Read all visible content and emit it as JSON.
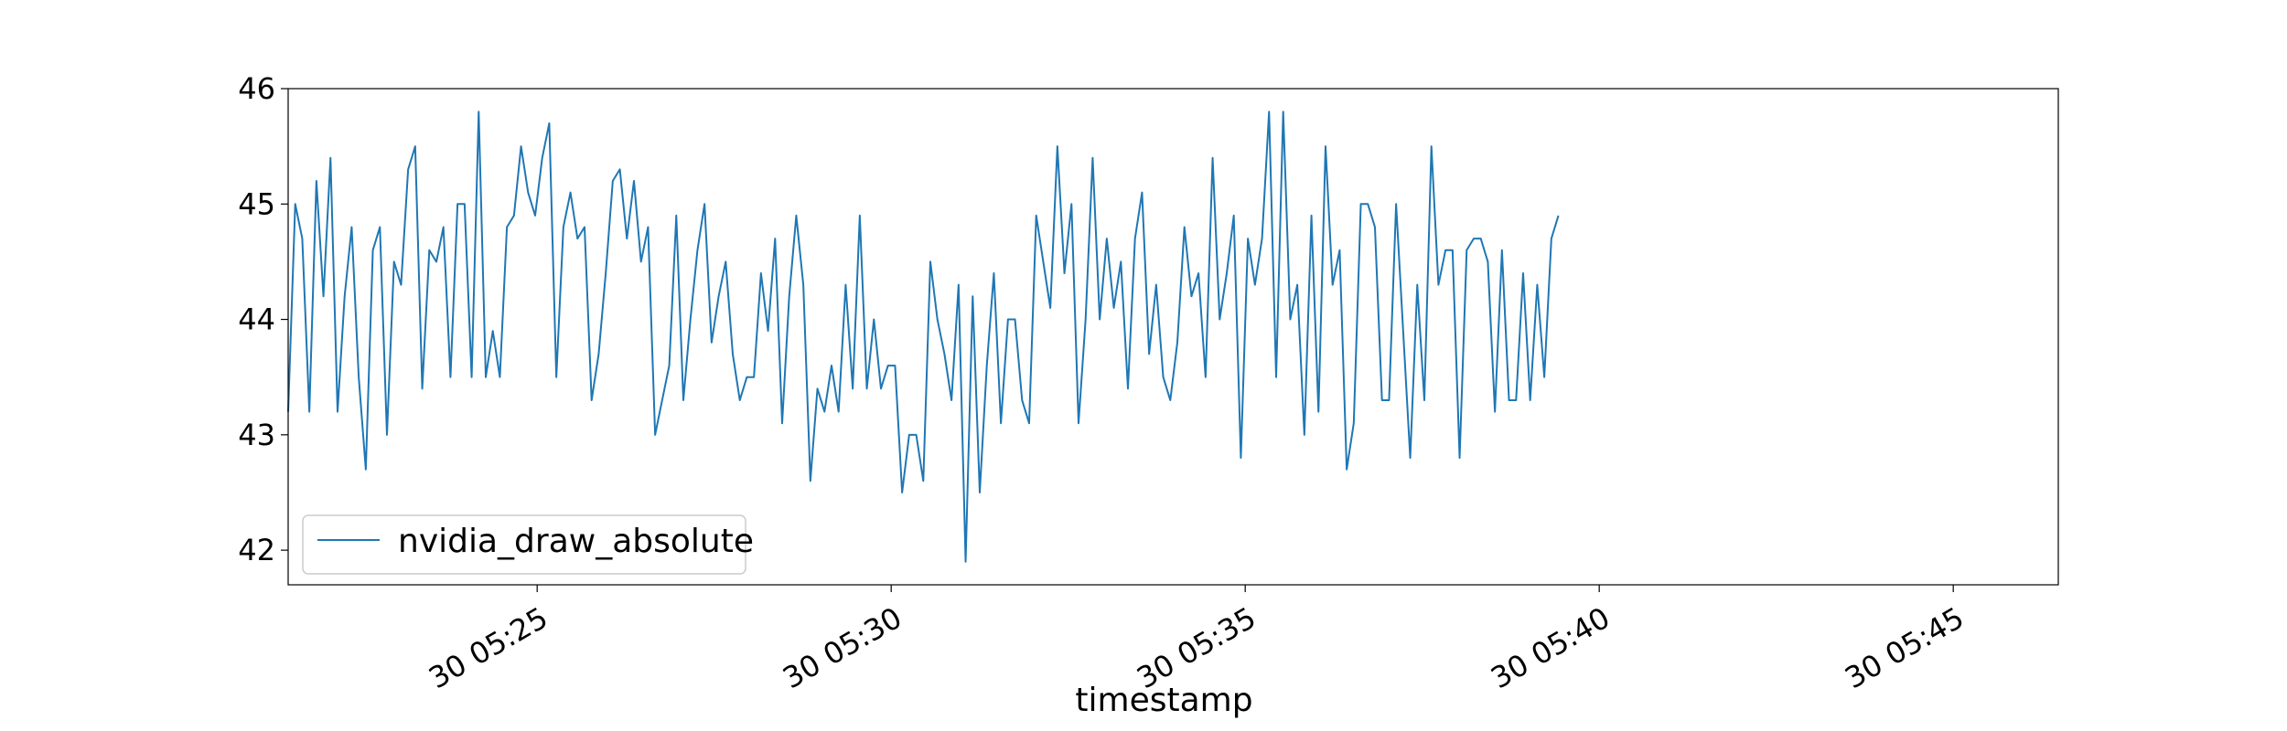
{
  "chart_data": {
    "type": "line",
    "title": "",
    "xlabel": "timestamp",
    "ylabel": "",
    "x_start": "05:21:29",
    "x_interval_seconds": 5.98,
    "xlim": [
      "05:21:29",
      "05:46:29"
    ],
    "ylim": [
      41.7,
      46.0
    ],
    "x_ticks": [
      "30 05:25",
      "30 05:30",
      "30 05:35",
      "30 05:40",
      "30 05:45"
    ],
    "y_ticks": [
      "42",
      "43",
      "44",
      "45",
      "46"
    ],
    "legend": {
      "location": "lower-left",
      "entries": [
        "nvidia_draw_absolute"
      ]
    },
    "grid": false,
    "color": "#1f77b4",
    "series": [
      {
        "name": "nvidia_draw_absolute",
        "values": [
          43.2,
          45.0,
          44.7,
          43.2,
          45.2,
          44.2,
          45.4,
          43.2,
          44.2,
          44.8,
          43.5,
          42.7,
          44.6,
          44.8,
          43.0,
          44.5,
          44.3,
          45.3,
          45.5,
          43.4,
          44.6,
          44.5,
          44.8,
          43.5,
          45.0,
          45.0,
          43.5,
          45.8,
          43.5,
          43.9,
          43.5,
          44.8,
          44.9,
          45.5,
          45.1,
          44.9,
          45.4,
          45.7,
          43.5,
          44.8,
          45.1,
          44.7,
          44.8,
          43.3,
          43.7,
          44.4,
          45.2,
          45.3,
          44.7,
          45.2,
          44.5,
          44.8,
          43.0,
          43.3,
          43.6,
          44.9,
          43.3,
          44.0,
          44.6,
          45.0,
          43.8,
          44.2,
          44.5,
          43.7,
          43.3,
          43.5,
          43.5,
          44.4,
          43.9,
          44.7,
          43.1,
          44.2,
          44.9,
          44.3,
          42.6,
          43.4,
          43.2,
          43.6,
          43.2,
          44.3,
          43.4,
          44.9,
          43.4,
          44.0,
          43.4,
          43.6,
          43.6,
          42.5,
          43.0,
          43.0,
          42.6,
          44.5,
          44.0,
          43.7,
          43.3,
          44.3,
          41.9,
          44.2,
          42.5,
          43.6,
          44.4,
          43.1,
          44.0,
          44.0,
          43.3,
          43.1,
          44.9,
          44.5,
          44.1,
          45.5,
          44.4,
          45.0,
          43.1,
          44.0,
          45.4,
          44.0,
          44.7,
          44.1,
          44.5,
          43.4,
          44.7,
          45.1,
          43.7,
          44.3,
          43.5,
          43.3,
          43.8,
          44.8,
          44.2,
          44.4,
          43.5,
          45.4,
          44.0,
          44.4,
          44.9,
          42.8,
          44.7,
          44.3,
          44.7,
          45.8,
          43.5,
          45.8,
          44.0,
          44.3,
          43.0,
          44.9,
          43.2,
          45.5,
          44.3,
          44.6,
          42.7,
          43.1,
          45.0,
          45.0,
          44.8,
          43.3,
          43.3,
          45.0,
          43.9,
          42.8,
          44.3,
          43.3,
          45.5,
          44.3,
          44.6,
          44.6,
          42.8,
          44.6,
          44.7,
          44.7,
          44.5,
          43.2,
          44.6,
          43.3,
          43.3,
          44.4,
          43.3,
          44.3,
          43.5,
          44.7,
          44.9
        ]
      }
    ]
  }
}
